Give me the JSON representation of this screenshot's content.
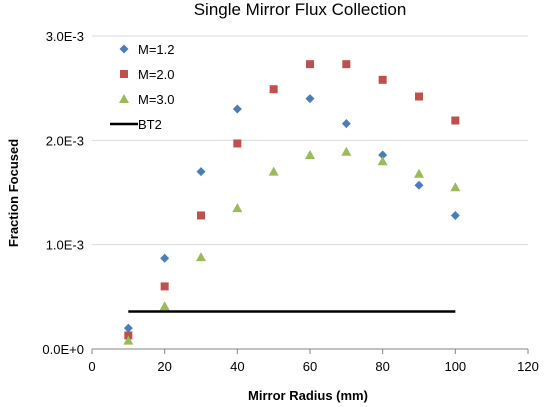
{
  "chart_data": {
    "type": "scatter",
    "title": "Single Mirror Flux Collection",
    "xlabel": "Mirror Radius (mm)",
    "ylabel": "Fraction Focused",
    "xlim": [
      0,
      120
    ],
    "ylim": [
      0,
      0.003
    ],
    "x_ticks": [
      "0",
      "20",
      "40",
      "60",
      "80",
      "100",
      "120"
    ],
    "y_ticks": [
      "0.0E+0",
      "1.0E-3",
      "2.0E-3",
      "3.0E-3"
    ],
    "grid": "horizontal",
    "legend_position": "top-left",
    "series": [
      {
        "name": "M=1.2",
        "marker": "diamond",
        "color": "#4a7ebb",
        "x": [
          10,
          20,
          30,
          40,
          60,
          70,
          80,
          90,
          100
        ],
        "y": [
          0.0002,
          0.00087,
          0.0017,
          0.0023,
          0.0024,
          0.00216,
          0.00186,
          0.00157,
          0.00128
        ]
      },
      {
        "name": "M=2.0",
        "marker": "square",
        "color": "#c0504d",
        "x": [
          10,
          20,
          30,
          40,
          50,
          60,
          70,
          80,
          90,
          100
        ],
        "y": [
          0.00013,
          0.0006,
          0.00128,
          0.00197,
          0.00249,
          0.00273,
          0.00273,
          0.00258,
          0.00242,
          0.00219
        ]
      },
      {
        "name": "M=3.0",
        "marker": "triangle",
        "color": "#9bbb59",
        "x": [
          10,
          20,
          30,
          40,
          50,
          60,
          70,
          80,
          90,
          100
        ],
        "y": [
          8e-05,
          0.00041,
          0.00088,
          0.00135,
          0.0017,
          0.00186,
          0.00189,
          0.0018,
          0.00168,
          0.00155
        ]
      },
      {
        "name": "BT2",
        "marker": "line",
        "color": "#000000",
        "x": [
          10,
          100
        ],
        "y": [
          0.00036,
          0.00036
        ]
      }
    ]
  }
}
